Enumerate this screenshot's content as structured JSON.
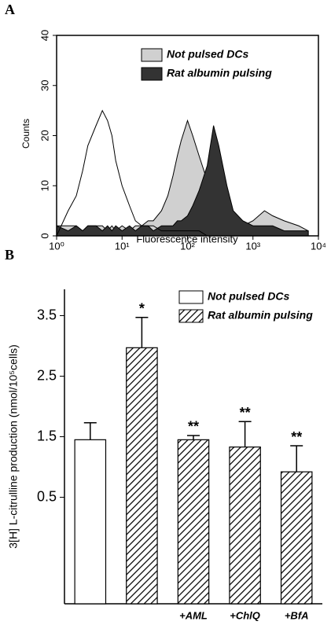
{
  "chart_data": [
    {
      "type": "area",
      "panel": "A",
      "xscale": "log",
      "x_label": "Fluorescence intensity",
      "y_label": "Counts",
      "xlim": [
        1,
        10000
      ],
      "xticks": [
        {
          "value": 1,
          "label": "10⁰"
        },
        {
          "value": 10,
          "label": "10¹"
        },
        {
          "value": 100,
          "label": "10²"
        },
        {
          "value": 1000,
          "label": "10³"
        },
        {
          "value": 10000,
          "label": "10⁴"
        }
      ],
      "ylim": [
        0,
        40
      ],
      "yticks": [
        0,
        10,
        20,
        30,
        40
      ],
      "legend": "top-right",
      "x": [
        1,
        1.5,
        2,
        2.5,
        3,
        4,
        5,
        6,
        7,
        8,
        10,
        13,
        16,
        20,
        25,
        30,
        40,
        50,
        60,
        70,
        80,
        100,
        120,
        150,
        200,
        250,
        300,
        400,
        500,
        700,
        1000,
        1500,
        2000,
        3000,
        5000,
        7000
      ],
      "series": [
        {
          "color": "#ffffff",
          "values": [
            0,
            5,
            8,
            13,
            18,
            22,
            25,
            23,
            20,
            15,
            10,
            6,
            3,
            2,
            2,
            2,
            1,
            1,
            1,
            1,
            1,
            1,
            1,
            1,
            0,
            0,
            0,
            0,
            0,
            0,
            0,
            0,
            0,
            0,
            0,
            0
          ]
        },
        {
          "name": "Not pulsed DCs",
          "color": "#d0d0d0",
          "values": [
            2,
            2,
            2,
            1,
            2,
            2,
            2,
            1,
            2,
            1,
            2,
            1,
            2,
            2,
            3,
            3,
            5,
            8,
            12,
            16,
            19,
            23,
            20,
            16,
            11,
            6,
            3,
            2,
            2,
            2,
            3,
            5,
            4,
            3,
            2,
            1
          ]
        },
        {
          "name": "Rat albumin pulsing",
          "color": "#333333",
          "values": [
            2,
            1,
            2,
            1,
            2,
            2,
            1,
            2,
            1,
            2,
            1,
            2,
            1,
            2,
            2,
            1,
            2,
            2,
            2,
            3,
            3,
            4,
            6,
            9,
            14,
            22,
            18,
            10,
            5,
            3,
            2,
            2,
            2,
            1,
            1,
            1
          ]
        }
      ]
    },
    {
      "type": "bar",
      "panel": "B",
      "y_label": "3[H] L-citrulline production (nmol/10⁵cells)",
      "categories": [
        null,
        null,
        "+AML",
        "+ChlQ",
        "+BfA"
      ],
      "ylim": [
        0,
        3.6
      ],
      "yticks": [
        0.5,
        1.5,
        2.5,
        3.5
      ],
      "legend": "top-right",
      "series": [
        {
          "name": "Not pulsed DCs",
          "color": "#ffffff",
          "values": [
            1.45,
            null,
            null,
            null,
            null
          ],
          "errors": [
            0.28,
            null,
            null,
            null,
            null
          ]
        },
        {
          "name": "Rat albumin pulsing",
          "color": "hatch",
          "values": [
            null,
            2.97,
            1.45,
            1.33,
            0.92
          ],
          "errors": [
            null,
            0.5,
            0.07,
            0.42,
            0.43
          ]
        }
      ],
      "annotations": [
        null,
        "*",
        "**",
        "**",
        "**"
      ]
    }
  ]
}
